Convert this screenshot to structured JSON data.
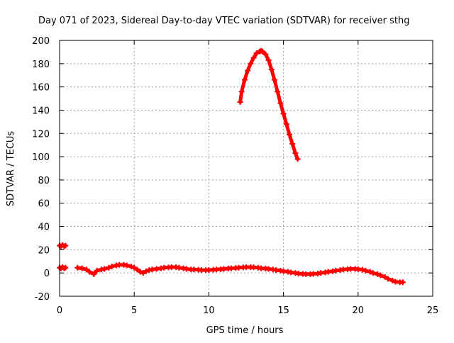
{
  "chart_data": {
    "type": "scatter",
    "title": "Day 071 of 2023, Sidereal Day-to-day VTEC variation (SDTVAR) for receiver sthg",
    "xlabel": "GPS time / hours",
    "ylabel": "SDTVAR / TECUs",
    "xlim": [
      0,
      25
    ],
    "ylim": [
      -20,
      200
    ],
    "xticks": [
      0,
      5,
      10,
      15,
      20,
      25
    ],
    "yticks": [
      -20,
      0,
      20,
      40,
      60,
      80,
      100,
      120,
      140,
      160,
      180,
      200
    ],
    "xtick_labels": [
      "0",
      "5",
      "10",
      "15",
      "20",
      "25"
    ],
    "ytick_labels": [
      "-20",
      "0",
      "20",
      "40",
      "60",
      "80",
      "100",
      "120",
      "140",
      "160",
      "180",
      "200"
    ],
    "grid": true,
    "legend": "none",
    "marker": "plus",
    "series": [
      {
        "name": "sdtvar-low-segment-1",
        "color": "#ff0000",
        "x": [
          0.0,
          0.1,
          0.2,
          0.3,
          0.4
        ],
        "y": [
          4.5,
          4.0,
          5.0,
          4.0,
          4.5
        ]
      },
      {
        "name": "sdtvar-high-start",
        "color": "#ff0000",
        "x": [
          0.0,
          0.1,
          0.2,
          0.3,
          0.4
        ],
        "y": [
          23.5,
          23.0,
          24.0,
          23.0,
          23.5
        ]
      },
      {
        "name": "sdtvar-low-segment-2",
        "color": "#ff0000",
        "x": [
          1.2,
          1.5,
          1.8,
          2.0,
          2.3,
          2.5,
          2.8,
          3.0,
          3.3,
          3.5,
          3.8,
          4.0,
          4.3,
          4.5,
          4.8,
          5.0,
          5.2,
          5.4,
          5.6,
          5.8,
          6.0,
          6.2,
          6.5,
          6.8,
          7.0,
          7.3,
          7.5,
          7.8,
          8.0,
          8.3,
          8.5,
          8.8,
          9.0,
          9.3,
          9.5,
          9.8,
          10.0,
          10.3,
          10.5,
          10.8,
          11.0,
          11.3,
          11.5,
          11.8,
          12.0,
          12.3,
          12.5,
          12.8,
          13.0,
          13.3,
          13.5,
          13.8,
          14.0,
          14.3,
          14.5,
          14.8,
          15.0,
          15.3,
          15.5,
          15.8,
          16.0,
          16.3,
          16.5,
          16.8,
          17.0,
          17.3,
          17.5,
          17.8,
          18.0,
          18.3,
          18.5,
          18.8,
          19.0,
          19.3,
          19.5,
          19.8,
          20.0,
          20.3,
          20.5,
          20.8,
          21.0,
          21.3,
          21.5,
          21.8,
          22.0,
          22.3,
          22.5,
          22.8,
          23.0
        ],
        "y": [
          4.5,
          4.0,
          3.0,
          1.0,
          -1.0,
          2.0,
          3.0,
          3.5,
          4.5,
          5.5,
          6.5,
          7.0,
          7.0,
          6.5,
          5.5,
          4.5,
          3.0,
          1.0,
          0.0,
          1.5,
          2.5,
          3.0,
          3.5,
          4.0,
          4.5,
          4.8,
          5.0,
          5.0,
          4.5,
          4.0,
          3.5,
          3.0,
          3.0,
          2.8,
          2.5,
          2.5,
          2.5,
          2.8,
          3.0,
          3.2,
          3.5,
          3.8,
          4.0,
          4.3,
          4.5,
          4.8,
          5.0,
          5.0,
          4.8,
          4.5,
          4.0,
          3.8,
          3.5,
          3.0,
          2.5,
          2.0,
          1.5,
          1.0,
          0.5,
          0.0,
          -0.5,
          -0.8,
          -1.0,
          -1.0,
          -0.8,
          -0.5,
          0.0,
          0.5,
          1.0,
          1.5,
          2.0,
          2.5,
          3.0,
          3.2,
          3.5,
          3.5,
          3.2,
          2.8,
          2.0,
          1.0,
          0.0,
          -1.0,
          -2.0,
          -3.5,
          -5.0,
          -6.5,
          -7.5,
          -8.0,
          -8.0
        ]
      },
      {
        "name": "sdtvar-arc",
        "color": "#ff0000",
        "x": [
          12.1,
          12.2,
          12.4,
          12.6,
          12.8,
          13.0,
          13.2,
          13.4,
          13.5,
          13.6,
          13.8,
          14.0,
          14.2,
          14.4,
          14.6,
          14.8,
          15.0,
          15.2,
          15.4,
          15.6,
          15.8,
          15.95
        ],
        "y": [
          147.0,
          156.0,
          166.0,
          174.0,
          180.0,
          185.0,
          189.0,
          190.5,
          191.0,
          190.5,
          188.0,
          183.0,
          175.0,
          166.0,
          156.0,
          146.0,
          137.0,
          128.0,
          119.0,
          111.0,
          103.0,
          98.0
        ]
      }
    ]
  }
}
